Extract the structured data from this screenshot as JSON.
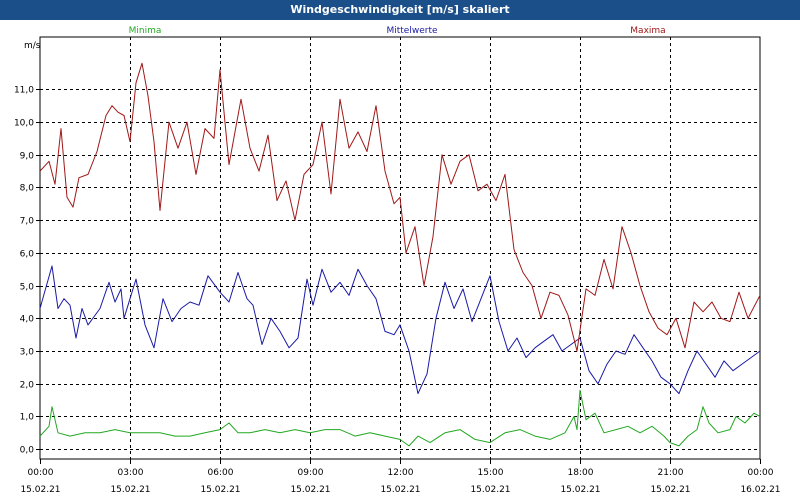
{
  "window": {
    "title": "Windgeschwindigkeit [m/s] skaliert"
  },
  "chart_data": {
    "type": "line",
    "ylabel": "m/s",
    "ylim": [
      -0.3,
      12.6
    ],
    "yticks": [
      0.0,
      1.0,
      2.0,
      3.0,
      4.0,
      5.0,
      6.0,
      7.0,
      8.0,
      9.0,
      10.0,
      11.0
    ],
    "ytick_labels": [
      "0,0",
      "1,0",
      "2,0",
      "3,0",
      "4,0",
      "5,0",
      "6,0",
      "7,0",
      "8,0",
      "9,0",
      "10,0",
      "11,0"
    ],
    "xlim_hours": [
      0,
      24
    ],
    "xticks": [
      {
        "time": "00:00",
        "date": "15.02.21"
      },
      {
        "time": "03:00",
        "date": "15.02.21"
      },
      {
        "time": "06:00",
        "date": "15.02.21"
      },
      {
        "time": "09:00",
        "date": "15.02.21"
      },
      {
        "time": "12:00",
        "date": "15.02.21"
      },
      {
        "time": "15:00",
        "date": "15.02.21"
      },
      {
        "time": "18:00",
        "date": "15.02.21"
      },
      {
        "time": "21:00",
        "date": "15.02.21"
      },
      {
        "time": "00:00",
        "date": "16.02.21"
      }
    ],
    "grid": true,
    "legend_position": "top",
    "series": [
      {
        "name": "Minima",
        "color": "#22a822",
        "points": [
          [
            0,
            0.4
          ],
          [
            0.3,
            0.7
          ],
          [
            0.4,
            1.3
          ],
          [
            0.5,
            0.9
          ],
          [
            0.6,
            0.5
          ],
          [
            1,
            0.4
          ],
          [
            1.5,
            0.5
          ],
          [
            2,
            0.5
          ],
          [
            2.5,
            0.6
          ],
          [
            3,
            0.5
          ],
          [
            3.5,
            0.5
          ],
          [
            4,
            0.5
          ],
          [
            4.5,
            0.4
          ],
          [
            5,
            0.4
          ],
          [
            5.5,
            0.5
          ],
          [
            6,
            0.6
          ],
          [
            6.3,
            0.8
          ],
          [
            6.6,
            0.5
          ],
          [
            7,
            0.5
          ],
          [
            7.5,
            0.6
          ],
          [
            8,
            0.5
          ],
          [
            8.5,
            0.6
          ],
          [
            9,
            0.5
          ],
          [
            9.5,
            0.6
          ],
          [
            10,
            0.6
          ],
          [
            10.5,
            0.4
          ],
          [
            11,
            0.5
          ],
          [
            11.5,
            0.4
          ],
          [
            12,
            0.3
          ],
          [
            12.3,
            0.1
          ],
          [
            12.6,
            0.4
          ],
          [
            13,
            0.2
          ],
          [
            13.5,
            0.5
          ],
          [
            14,
            0.6
          ],
          [
            14.5,
            0.3
          ],
          [
            15,
            0.2
          ],
          [
            15.5,
            0.5
          ],
          [
            16,
            0.6
          ],
          [
            16.5,
            0.4
          ],
          [
            17,
            0.3
          ],
          [
            17.5,
            0.5
          ],
          [
            17.8,
            1.0
          ],
          [
            17.9,
            0.6
          ],
          [
            18,
            1.8
          ],
          [
            18.2,
            0.9
          ],
          [
            18.5,
            1.1
          ],
          [
            18.8,
            0.5
          ],
          [
            19.2,
            0.6
          ],
          [
            19.6,
            0.7
          ],
          [
            20,
            0.5
          ],
          [
            20.4,
            0.7
          ],
          [
            20.8,
            0.4
          ],
          [
            21,
            0.2
          ],
          [
            21.3,
            0.1
          ],
          [
            21.6,
            0.4
          ],
          [
            21.9,
            0.6
          ],
          [
            22.1,
            1.3
          ],
          [
            22.3,
            0.8
          ],
          [
            22.6,
            0.5
          ],
          [
            23,
            0.6
          ],
          [
            23.2,
            1.0
          ],
          [
            23.5,
            0.8
          ],
          [
            23.8,
            1.1
          ],
          [
            24,
            1.0
          ]
        ]
      },
      {
        "name": "Mittelwerte",
        "color": "#1a1aa8",
        "points": [
          [
            0,
            4.3
          ],
          [
            0.4,
            5.6
          ],
          [
            0.6,
            4.3
          ],
          [
            0.8,
            4.6
          ],
          [
            1,
            4.4
          ],
          [
            1.2,
            3.4
          ],
          [
            1.4,
            4.3
          ],
          [
            1.6,
            3.8
          ],
          [
            2,
            4.3
          ],
          [
            2.3,
            5.1
          ],
          [
            2.5,
            4.5
          ],
          [
            2.7,
            4.9
          ],
          [
            2.8,
            4.0
          ],
          [
            3,
            4.6
          ],
          [
            3.2,
            5.2
          ],
          [
            3.5,
            3.8
          ],
          [
            3.8,
            3.1
          ],
          [
            4.1,
            4.6
          ],
          [
            4.4,
            3.9
          ],
          [
            4.7,
            4.3
          ],
          [
            5,
            4.5
          ],
          [
            5.3,
            4.4
          ],
          [
            5.6,
            5.3
          ],
          [
            6,
            4.8
          ],
          [
            6.3,
            4.5
          ],
          [
            6.6,
            5.4
          ],
          [
            6.9,
            4.6
          ],
          [
            7.1,
            4.4
          ],
          [
            7.4,
            3.2
          ],
          [
            7.7,
            4.0
          ],
          [
            8,
            3.6
          ],
          [
            8.3,
            3.1
          ],
          [
            8.6,
            3.4
          ],
          [
            8.9,
            5.2
          ],
          [
            9.1,
            4.4
          ],
          [
            9.4,
            5.5
          ],
          [
            9.7,
            4.8
          ],
          [
            10,
            5.1
          ],
          [
            10.3,
            4.7
          ],
          [
            10.6,
            5.5
          ],
          [
            10.9,
            5.0
          ],
          [
            11.2,
            4.6
          ],
          [
            11.5,
            3.6
          ],
          [
            11.8,
            3.5
          ],
          [
            12,
            3.8
          ],
          [
            12.3,
            3.0
          ],
          [
            12.6,
            1.7
          ],
          [
            12.9,
            2.3
          ],
          [
            13.2,
            4.0
          ],
          [
            13.5,
            5.1
          ],
          [
            13.8,
            4.3
          ],
          [
            14.1,
            4.9
          ],
          [
            14.4,
            3.9
          ],
          [
            14.7,
            4.6
          ],
          [
            15,
            5.3
          ],
          [
            15.3,
            3.9
          ],
          [
            15.6,
            3.0
          ],
          [
            15.9,
            3.4
          ],
          [
            16.2,
            2.8
          ],
          [
            16.5,
            3.1
          ],
          [
            16.8,
            3.3
          ],
          [
            17.1,
            3.5
          ],
          [
            17.4,
            3.0
          ],
          [
            17.7,
            3.2
          ],
          [
            18,
            3.4
          ],
          [
            18.3,
            2.4
          ],
          [
            18.6,
            2.0
          ],
          [
            18.9,
            2.6
          ],
          [
            19.2,
            3.0
          ],
          [
            19.5,
            2.9
          ],
          [
            19.8,
            3.5
          ],
          [
            20.1,
            3.1
          ],
          [
            20.4,
            2.7
          ],
          [
            20.7,
            2.2
          ],
          [
            21,
            2.0
          ],
          [
            21.3,
            1.7
          ],
          [
            21.6,
            2.4
          ],
          [
            21.9,
            3.0
          ],
          [
            22.2,
            2.6
          ],
          [
            22.5,
            2.2
          ],
          [
            22.8,
            2.7
          ],
          [
            23.1,
            2.4
          ],
          [
            23.4,
            2.6
          ],
          [
            23.7,
            2.8
          ],
          [
            24,
            3.0
          ]
        ]
      },
      {
        "name": "Maxima",
        "color": "#a01818",
        "points": [
          [
            0,
            8.5
          ],
          [
            0.3,
            8.8
          ],
          [
            0.5,
            8.1
          ],
          [
            0.7,
            9.8
          ],
          [
            0.9,
            7.7
          ],
          [
            1.1,
            7.4
          ],
          [
            1.3,
            8.3
          ],
          [
            1.6,
            8.4
          ],
          [
            1.9,
            9.1
          ],
          [
            2.2,
            10.2
          ],
          [
            2.4,
            10.5
          ],
          [
            2.6,
            10.3
          ],
          [
            2.8,
            10.2
          ],
          [
            3,
            9.4
          ],
          [
            3.2,
            11.2
          ],
          [
            3.4,
            11.8
          ],
          [
            3.6,
            10.8
          ],
          [
            3.8,
            9.4
          ],
          [
            4,
            7.3
          ],
          [
            4.3,
            10.0
          ],
          [
            4.6,
            9.2
          ],
          [
            4.9,
            10.0
          ],
          [
            5.2,
            8.4
          ],
          [
            5.5,
            9.8
          ],
          [
            5.8,
            9.5
          ],
          [
            6,
            11.6
          ],
          [
            6.3,
            8.7
          ],
          [
            6.7,
            10.7
          ],
          [
            7,
            9.2
          ],
          [
            7.3,
            8.5
          ],
          [
            7.6,
            9.6
          ],
          [
            7.9,
            7.6
          ],
          [
            8.2,
            8.2
          ],
          [
            8.5,
            7.0
          ],
          [
            8.8,
            8.4
          ],
          [
            9.1,
            8.7
          ],
          [
            9.4,
            10.0
          ],
          [
            9.7,
            7.8
          ],
          [
            10,
            10.7
          ],
          [
            10.3,
            9.2
          ],
          [
            10.6,
            9.7
          ],
          [
            10.9,
            9.1
          ],
          [
            11.2,
            10.5
          ],
          [
            11.5,
            8.5
          ],
          [
            11.8,
            7.5
          ],
          [
            12,
            7.7
          ],
          [
            12.2,
            6.0
          ],
          [
            12.5,
            6.8
          ],
          [
            12.8,
            5.0
          ],
          [
            13.1,
            6.5
          ],
          [
            13.4,
            9.0
          ],
          [
            13.7,
            8.1
          ],
          [
            14,
            8.8
          ],
          [
            14.3,
            9.0
          ],
          [
            14.6,
            7.9
          ],
          [
            14.9,
            8.1
          ],
          [
            15.2,
            7.6
          ],
          [
            15.5,
            8.4
          ],
          [
            15.8,
            6.1
          ],
          [
            16.1,
            5.4
          ],
          [
            16.4,
            5.0
          ],
          [
            16.7,
            4.0
          ],
          [
            17,
            4.8
          ],
          [
            17.3,
            4.7
          ],
          [
            17.6,
            4.1
          ],
          [
            17.9,
            3.0
          ],
          [
            18.2,
            4.9
          ],
          [
            18.5,
            4.7
          ],
          [
            18.8,
            5.8
          ],
          [
            19.1,
            4.9
          ],
          [
            19.4,
            6.8
          ],
          [
            19.7,
            6.0
          ],
          [
            20,
            5.0
          ],
          [
            20.3,
            4.2
          ],
          [
            20.6,
            3.7
          ],
          [
            20.9,
            3.5
          ],
          [
            21.2,
            4.0
          ],
          [
            21.5,
            3.1
          ],
          [
            21.8,
            4.5
          ],
          [
            22.1,
            4.2
          ],
          [
            22.4,
            4.5
          ],
          [
            22.7,
            4.0
          ],
          [
            23,
            3.9
          ],
          [
            23.3,
            4.8
          ],
          [
            23.6,
            4.0
          ],
          [
            24,
            4.7
          ]
        ]
      }
    ]
  }
}
